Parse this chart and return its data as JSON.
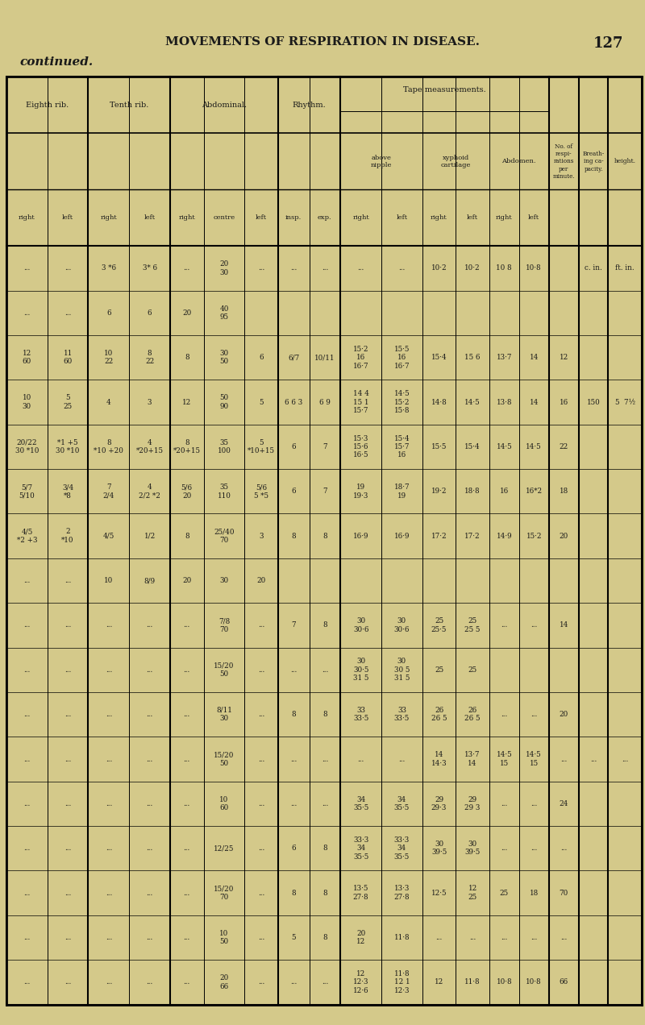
{
  "page_header": "MOVEMENTS OF RESPIRATION IN DISEASE.",
  "page_number": "127",
  "section_label": "continued.",
  "bg_color": "#d4c98a",
  "units_row": [
    "...",
    "...",
    "3 *6",
    "3* 6",
    "...",
    "20\n30",
    "...",
    "...",
    "...",
    "...",
    "...",
    "10·2",
    "10·2",
    "10 8",
    "10·8",
    "",
    "c. in.",
    "ft. in."
  ],
  "data_rows": [
    [
      "...",
      "...",
      "6",
      "6",
      "20",
      "40\n95",
      "",
      "",
      "",
      "",
      "",
      "",
      "",
      "",
      "",
      "",
      "",
      ""
    ],
    [
      "12\n60",
      "11\n60",
      "10\n22",
      "8\n22",
      "8",
      "30\n50",
      "6",
      "6/7",
      "10/11",
      "15·2\n16\n16·7",
      "15·5\n16\n16·7",
      "15·4",
      "15 6",
      "13·7",
      "14",
      "12",
      "",
      ""
    ],
    [
      "10\n30",
      "5\n25",
      "4",
      "3",
      "12",
      "50\n90",
      "5",
      "6 6 3",
      "6 9",
      "14 4\n15 1\n15·7",
      "14·5\n15·2\n15·8",
      "14·8",
      "14·5",
      "13·8",
      "14",
      "16",
      "150",
      "5  7½"
    ],
    [
      "20/22\n30 *10",
      "*1 +5\n30 *10",
      "8\n*10 +20",
      "4\n*20+15",
      "8\n*20+15",
      "35\n100",
      "5\n*10+15",
      "6",
      "7",
      "15·3\n15·6\n16·5",
      "15·4\n15·7\n16",
      "15·5",
      "15·4",
      "14·5",
      "14·5",
      "22",
      "",
      ""
    ],
    [
      "5/7\n5/10",
      "3/4\n*8",
      "7\n2/4",
      "4\n2/2 *2",
      "5/6\n20",
      "35\n110",
      "5/6\n5 *5",
      "6",
      "7",
      "19\n19·3",
      "18·7\n19",
      "19·2",
      "18·8",
      "16",
      "16*2",
      "18",
      "",
      ""
    ],
    [
      "4/5\n*2 +3",
      "2\n*10",
      "4/5",
      "1/2",
      "8",
      "25/40\n70",
      "3",
      "8",
      "8",
      "16·9",
      "16·9",
      "17·2",
      "17·2",
      "14·9",
      "15·2",
      "20",
      "",
      ""
    ],
    [
      "...",
      "...",
      "10",
      "8/9",
      "20",
      "30",
      "20",
      "",
      "",
      "",
      "",
      "",
      "",
      "",
      "",
      "",
      "",
      ""
    ],
    [
      "...",
      "...",
      "...",
      "...",
      "...",
      "7/8\n70",
      "...",
      "7",
      "8",
      "30\n30·6",
      "30\n30·6",
      "25\n25·5",
      "25\n25 5",
      "...",
      "...",
      "14",
      "",
      ""
    ],
    [
      "...",
      "...",
      "...",
      "...",
      "...",
      "15/20\n50",
      "...",
      "...",
      "...",
      "30\n30·5\n31 5",
      "30\n30 5\n31 5",
      "25",
      "25",
      "",
      "",
      "",
      "",
      ""
    ],
    [
      "...",
      "...",
      "...",
      "...",
      "...",
      "8/11\n30",
      "...",
      "8",
      "8",
      "33\n33·5",
      "33\n33·5",
      "26\n26 5",
      "26\n26 5",
      "...",
      "...",
      "20",
      "",
      ""
    ],
    [
      "...",
      "...",
      "...",
      "...",
      "...",
      "15/20\n50",
      "...",
      "...",
      "...",
      "...",
      "...",
      "14\n14·3",
      "13·7\n14",
      "14·5\n15",
      "14·5\n15",
      "...",
      "...",
      "..."
    ],
    [
      "...",
      "...",
      "...",
      "...",
      "...",
      "10\n60",
      "...",
      "...",
      "...",
      "34\n35·5",
      "34\n35·5",
      "29\n29·3",
      "29\n29 3",
      "...",
      "...",
      "24",
      "",
      ""
    ],
    [
      "...",
      "...",
      "...",
      "...",
      "...",
      "12/25",
      "...",
      "6",
      "8",
      "33·3\n34\n35·5",
      "33·3\n34\n35·5",
      "30\n39·5",
      "30\n39·5",
      "...",
      "...",
      "...",
      "",
      ""
    ],
    [
      "...",
      "...",
      "...",
      "...",
      "...",
      "15/20\n70",
      "...",
      "8",
      "8",
      "13·5\n27·8",
      "13·3\n27·8",
      "12·5",
      "12\n25",
      "25",
      "18",
      "70",
      "",
      ""
    ],
    [
      "...",
      "...",
      "...",
      "...",
      "...",
      "10\n50",
      "...",
      "5",
      "8",
      "20\n12",
      "11·8",
      "...",
      "...",
      "...",
      "...",
      "...",
      "",
      ""
    ],
    [
      "...",
      "...",
      "...",
      "...",
      "...",
      "20\n66",
      "...",
      "...",
      "...",
      "12\n12·3\n12·6",
      "11·8\n12 1\n12·3",
      "12",
      "11·8",
      "10·8",
      "10·8",
      "66",
      "",
      ""
    ]
  ]
}
